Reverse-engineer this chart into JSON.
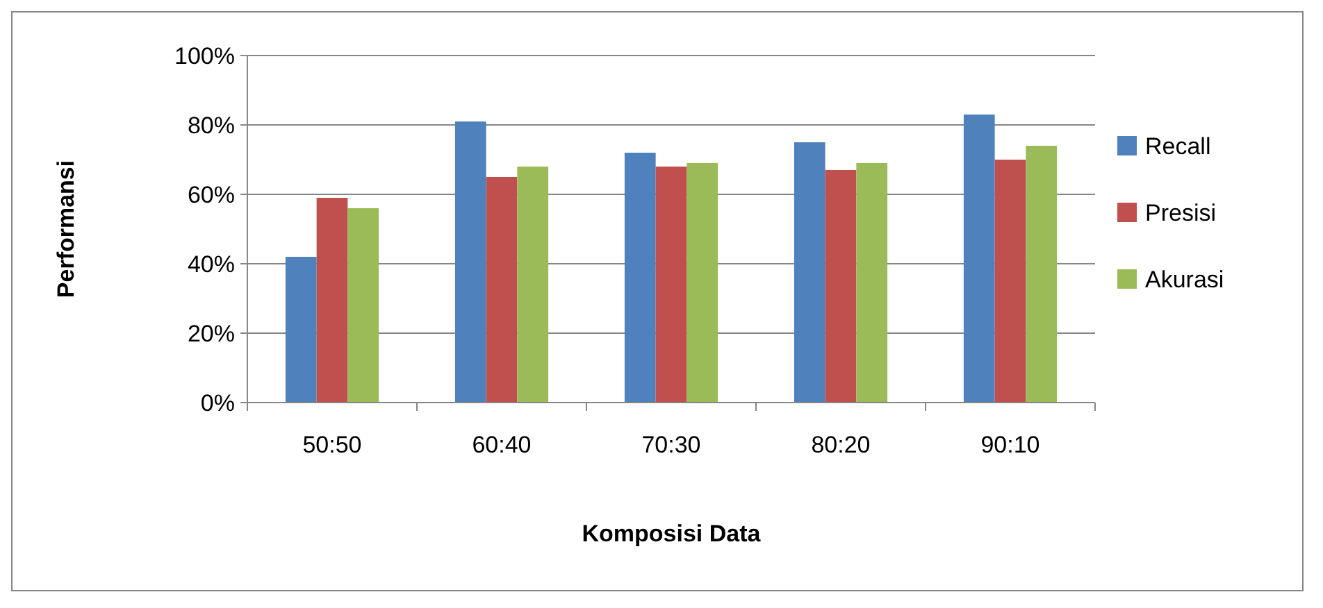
{
  "chart_data": {
    "type": "bar",
    "xlabel": "Komposisi Data",
    "ylabel": "Performansi",
    "categories": [
      "50:50",
      "60:40",
      "70:30",
      "80:20",
      "90:10"
    ],
    "series": [
      {
        "name": "Recall",
        "color": "#4f81bd",
        "values": [
          42,
          81,
          72,
          75,
          83
        ]
      },
      {
        "name": "Presisi",
        "color": "#c0504d",
        "values": [
          59,
          65,
          68,
          67,
          70
        ]
      },
      {
        "name": "Akurasi",
        "color": "#9bbb59",
        "values": [
          56,
          68,
          69,
          69,
          74
        ]
      }
    ],
    "ylim": [
      0,
      100
    ],
    "yticks": [
      {
        "value": 0,
        "label": "0%"
      },
      {
        "value": 20,
        "label": "20%"
      },
      {
        "value": 40,
        "label": "40%"
      },
      {
        "value": 60,
        "label": "60%"
      },
      {
        "value": 80,
        "label": "80%"
      },
      {
        "value": 100,
        "label": "100%"
      }
    ],
    "grid": "y",
    "legend": "right"
  }
}
